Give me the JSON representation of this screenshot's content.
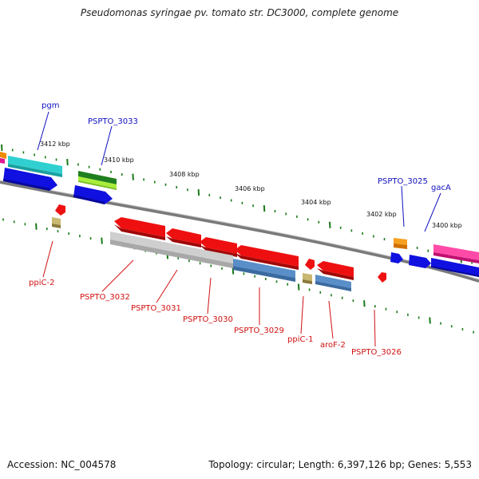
{
  "title": "Pseudomonas syringae pv. tomato str. DC3000, complete genome",
  "footer": {
    "accession": "Accession: NC_004578",
    "stats": "Topology: circular; Length: 6,397,126 bp; Genes: 5,553"
  },
  "kbp_labels": [
    "3412 kbp",
    "3410 kbp",
    "3408 kbp",
    "3406 kbp",
    "3404 kbp",
    "3402 kbp",
    "3400 kbp"
  ],
  "top_genes": [
    "pgm",
    "PSPTO_3033",
    "PSPTO_3025",
    "gacA"
  ],
  "bottom_genes": [
    "ppiC-2",
    "PSPTO_3032",
    "PSPTO_3031",
    "PSPTO_3030",
    "PSPTO_3029",
    "ppiC-1",
    "aroF-2",
    "PSPTO_3026"
  ],
  "colors": {
    "top_label": "#1010c0",
    "bottom_label": "#d01010",
    "tick": "#1a7a1a",
    "backbone": "#808080"
  }
}
